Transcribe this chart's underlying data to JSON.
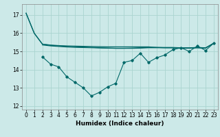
{
  "xlabel": "Humidex (Indice chaleur)",
  "bg_color": "#cce9e8",
  "grid_color": "#aad4d0",
  "line_color": "#006868",
  "xlim": [
    -0.5,
    23.5
  ],
  "ylim": [
    11.8,
    17.6
  ],
  "yticks": [
    12,
    13,
    14,
    15,
    16,
    17
  ],
  "xticks": [
    0,
    1,
    2,
    3,
    4,
    5,
    6,
    7,
    8,
    9,
    10,
    11,
    12,
    13,
    14,
    15,
    16,
    17,
    18,
    19,
    20,
    21,
    22,
    23
  ],
  "line1_x": [
    0,
    1,
    2,
    3,
    4,
    5,
    6,
    7,
    8,
    9,
    10,
    11,
    12,
    13,
    14,
    15,
    16,
    17,
    18,
    19,
    20,
    21,
    22,
    23
  ],
  "line1_y": [
    17.1,
    16.0,
    15.4,
    15.35,
    15.32,
    15.3,
    15.29,
    15.28,
    15.27,
    15.26,
    15.25,
    15.25,
    15.25,
    15.25,
    15.25,
    15.25,
    15.22,
    15.2,
    15.2,
    15.18,
    15.18,
    15.2,
    15.18,
    15.45
  ],
  "line2_x": [
    0,
    1,
    2,
    3,
    4,
    5,
    6,
    7,
    8,
    9,
    10,
    11,
    12,
    13,
    14,
    15,
    16,
    17,
    18,
    19,
    20,
    21,
    22,
    23
  ],
  "line2_y": [
    17.1,
    16.0,
    15.4,
    15.33,
    15.3,
    15.28,
    15.26,
    15.24,
    15.22,
    15.2,
    15.18,
    15.17,
    15.17,
    15.17,
    15.18,
    15.2,
    15.2,
    15.2,
    15.2,
    15.18,
    15.18,
    15.2,
    15.18,
    15.45
  ],
  "line3_x": [
    2,
    3,
    4,
    5,
    6,
    7,
    8,
    9,
    10,
    11,
    12,
    13,
    14,
    15,
    16,
    17,
    18,
    19,
    20,
    21,
    22,
    23
  ],
  "line3_y": [
    14.7,
    14.3,
    14.15,
    13.6,
    13.3,
    13.0,
    12.55,
    12.75,
    13.05,
    13.25,
    14.4,
    14.5,
    14.9,
    14.4,
    14.65,
    14.8,
    15.1,
    15.2,
    15.0,
    15.3,
    15.05,
    15.45
  ],
  "line4_x": [
    2,
    3,
    4,
    5,
    6,
    7,
    8,
    9,
    10,
    11,
    12,
    13,
    14,
    15,
    16,
    17,
    18,
    19,
    20,
    21,
    22,
    23
  ],
  "line4_y": [
    15.35,
    15.3,
    15.27,
    15.24,
    15.22,
    15.21,
    15.2,
    15.19,
    15.18,
    15.17,
    15.17,
    15.18,
    15.2,
    15.22,
    15.22,
    15.22,
    15.22,
    15.2,
    15.2,
    15.22,
    15.2,
    15.45
  ],
  "xlabel_fontsize": 6.5,
  "tick_fontsize": 5.5
}
